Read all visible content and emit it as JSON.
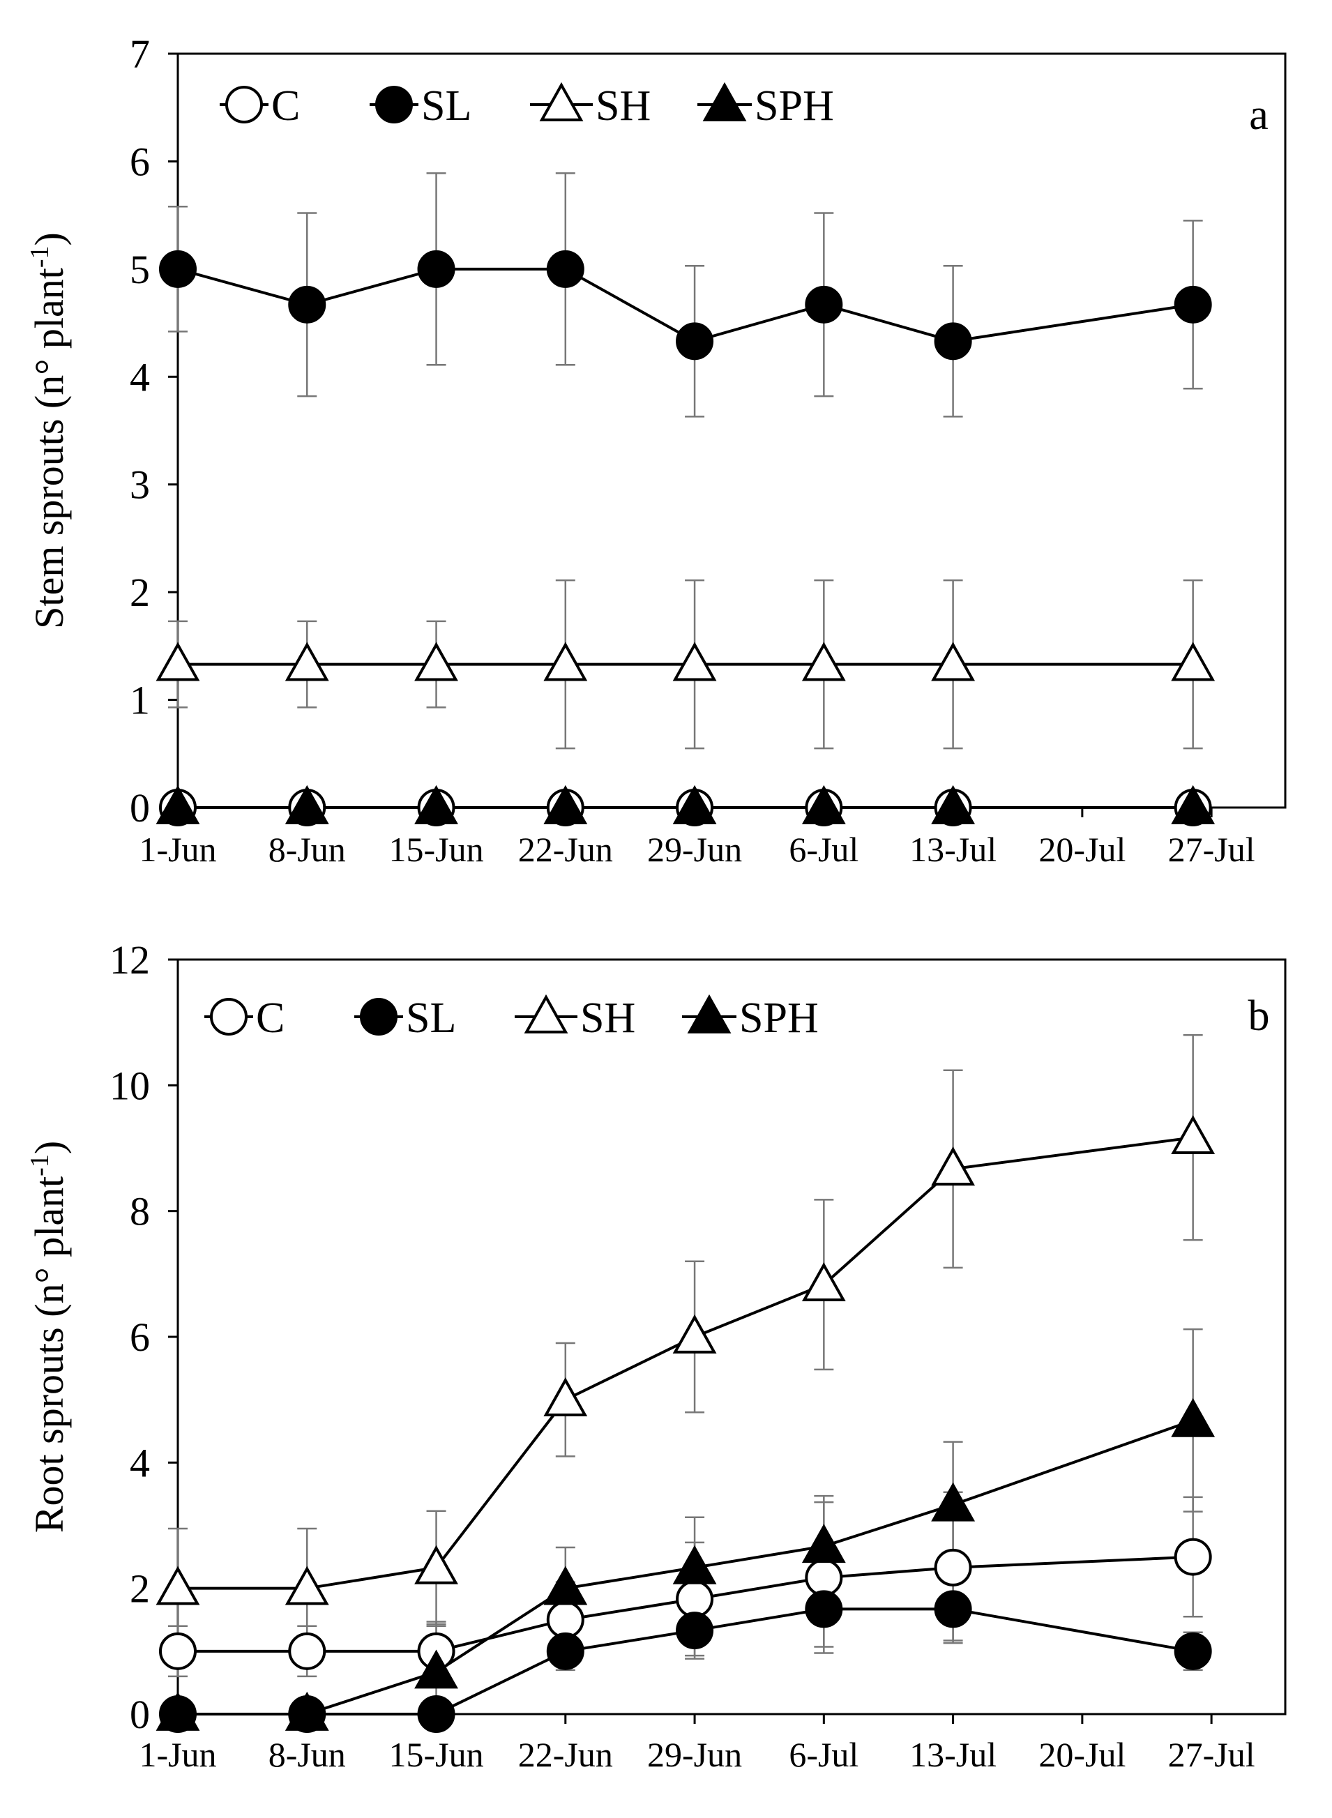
{
  "chart_data": [
    {
      "type": "line",
      "panel_label": "a",
      "ylabel": "Stem sprouts (n° plant",
      "ylabel_sup": "-1",
      "ylabel_close": ")",
      "ylim": [
        0,
        7
      ],
      "yticks": [
        0,
        1,
        2,
        3,
        4,
        5,
        6,
        7
      ],
      "xlim": [
        1,
        61
      ],
      "xticks": [
        {
          "label": "1-Jun",
          "day": 1
        },
        {
          "label": "8-Jun",
          "day": 8
        },
        {
          "label": "15-Jun",
          "day": 15
        },
        {
          "label": "22-Jun",
          "day": 22
        },
        {
          "label": "29-Jun",
          "day": 29
        },
        {
          "label": "6-Jul",
          "day": 36
        },
        {
          "label": "13-Jul",
          "day": 43
        },
        {
          "label": "20-Jul",
          "day": 50
        },
        {
          "label": "27-Jul",
          "day": 57
        }
      ],
      "x": [
        1,
        8,
        15,
        22,
        29,
        36,
        43,
        56
      ],
      "legend": {
        "position": "top-left",
        "entries": [
          "C",
          "SL",
          "SH",
          "SPH"
        ]
      },
      "series": [
        {
          "name": "C",
          "marker": "circle-open",
          "values": [
            0,
            0,
            0,
            0,
            0,
            0,
            0,
            0
          ],
          "errors": [
            0,
            0,
            0,
            0,
            0,
            0,
            0,
            0
          ]
        },
        {
          "name": "SL",
          "marker": "circle-filled",
          "values": [
            5.0,
            4.67,
            5.0,
            5.0,
            4.33,
            4.67,
            4.33,
            4.67
          ],
          "errors": [
            0.58,
            0.85,
            0.89,
            0.89,
            0.7,
            0.85,
            0.7,
            0.78
          ]
        },
        {
          "name": "SH",
          "marker": "triangle-open",
          "values": [
            1.33,
            1.33,
            1.33,
            1.33,
            1.33,
            1.33,
            1.33,
            1.33
          ],
          "errors": [
            0.4,
            0.4,
            0.4,
            0.78,
            0.78,
            0.78,
            0.78,
            0.78
          ]
        },
        {
          "name": "SPH",
          "marker": "triangle-filled",
          "values": [
            0,
            0,
            0,
            0,
            0,
            0,
            0,
            0
          ],
          "errors": [
            0,
            0,
            0,
            0,
            0,
            0,
            0,
            0
          ]
        }
      ]
    },
    {
      "type": "line",
      "panel_label": "b",
      "ylabel": "Root sprouts (n° plant",
      "ylabel_sup": "-1",
      "ylabel_close": ")",
      "ylim": [
        0,
        12
      ],
      "yticks": [
        0,
        2,
        4,
        6,
        8,
        10,
        12
      ],
      "xlim": [
        1,
        61
      ],
      "xticks": [
        {
          "label": "1-Jun",
          "day": 1
        },
        {
          "label": "8-Jun",
          "day": 8
        },
        {
          "label": "15-Jun",
          "day": 15
        },
        {
          "label": "22-Jun",
          "day": 22
        },
        {
          "label": "29-Jun",
          "day": 29
        },
        {
          "label": "6-Jul",
          "day": 36
        },
        {
          "label": "13-Jul",
          "day": 43
        },
        {
          "label": "20-Jul",
          "day": 50
        },
        {
          "label": "27-Jul",
          "day": 57
        }
      ],
      "x": [
        1,
        8,
        15,
        22,
        29,
        36,
        43,
        56
      ],
      "legend": {
        "position": "top-left",
        "entries": [
          "C",
          "SL",
          "SH",
          "SPH"
        ]
      },
      "series": [
        {
          "name": "C",
          "marker": "circle-open",
          "values": [
            1.0,
            1.0,
            1.0,
            1.5,
            1.83,
            2.17,
            2.33,
            2.5
          ],
          "errors": [
            0.4,
            0.4,
            0.4,
            0.6,
            0.9,
            1.2,
            1.2,
            0.95
          ]
        },
        {
          "name": "SL",
          "marker": "circle-filled",
          "values": [
            0,
            0,
            0,
            1.0,
            1.33,
            1.67,
            1.67,
            1.0
          ],
          "errors": [
            0,
            0,
            0,
            0.3,
            0.45,
            0.6,
            0.5,
            0.3
          ]
        },
        {
          "name": "SH",
          "marker": "triangle-open",
          "values": [
            2.0,
            2.0,
            2.33,
            5.0,
            6.0,
            6.83,
            8.67,
            9.17
          ],
          "errors": [
            0.95,
            0.95,
            0.9,
            0.9,
            1.2,
            1.35,
            1.57,
            1.63
          ]
        },
        {
          "name": "SPH",
          "marker": "triangle-filled",
          "values": [
            0,
            0,
            0.67,
            2.0,
            2.33,
            2.67,
            3.33,
            4.67
          ],
          "errors": [
            0,
            0,
            0.8,
            0.65,
            0.8,
            0.8,
            1.0,
            1.45
          ]
        }
      ]
    }
  ]
}
